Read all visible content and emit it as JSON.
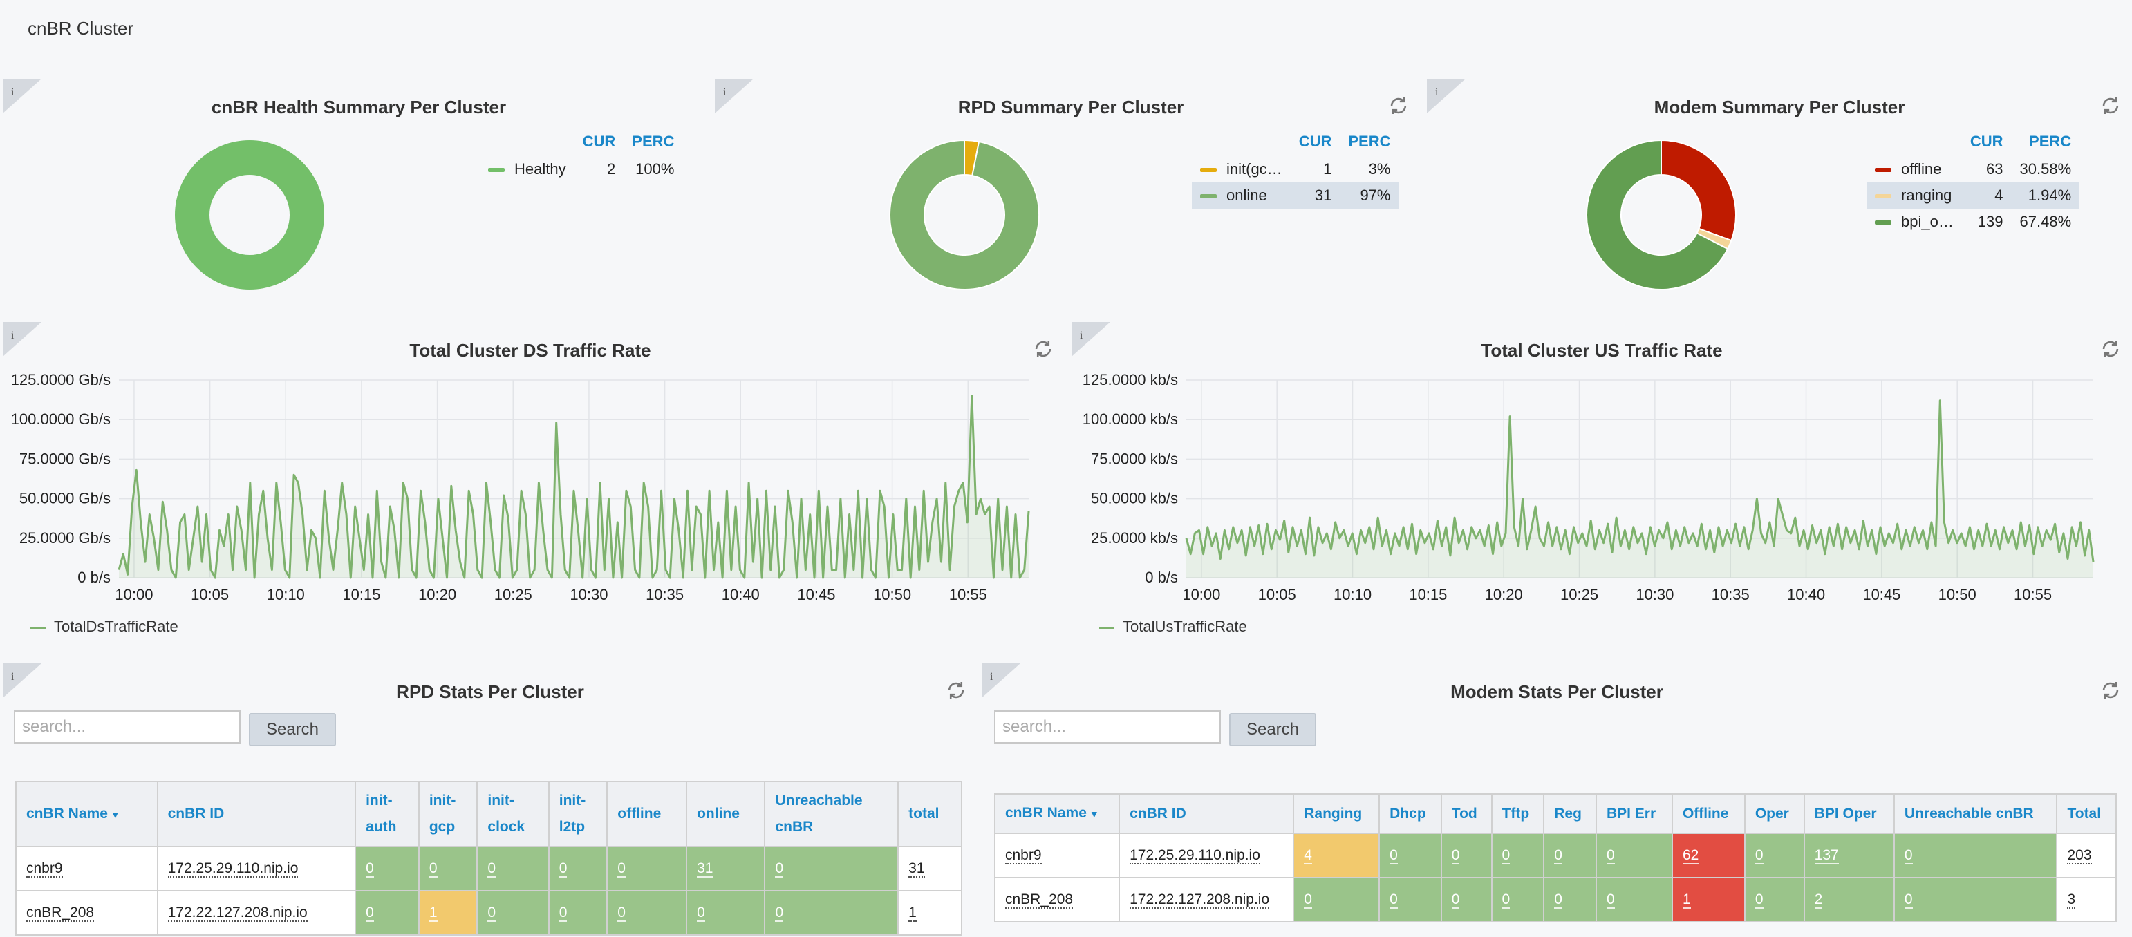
{
  "page": {
    "title": "cnBR Cluster"
  },
  "health": {
    "title": "cnBR Health Summary Per Cluster",
    "cur_header": "CUR",
    "perc_header": "PERC",
    "rows": [
      {
        "label": "Healthy",
        "cur": "2",
        "perc": "100%",
        "color": "#73bf69",
        "value": 2
      }
    ]
  },
  "rpd_summary": {
    "title": "RPD Summary Per Cluster",
    "cur_header": "CUR",
    "perc_header": "PERC",
    "rows": [
      {
        "label": "init(gc…",
        "cur": "1",
        "perc": "3%",
        "color": "#e5ac0e",
        "value": 1
      },
      {
        "label": "online",
        "cur": "31",
        "perc": "97%",
        "color": "#7eb26d",
        "value": 31
      }
    ]
  },
  "modem_summary": {
    "title": "Modem Summary Per Cluster",
    "cur_header": "CUR",
    "perc_header": "PERC",
    "rows": [
      {
        "label": "offline",
        "cur": "63",
        "perc": "30.58%",
        "color": "#bf1b00",
        "value": 63
      },
      {
        "label": "ranging",
        "cur": "4",
        "perc": "1.94%",
        "color": "#f4d598",
        "value": 4
      },
      {
        "label": "bpi_o…",
        "cur": "139",
        "perc": "67.48%",
        "color": "#629e51",
        "value": 139
      }
    ]
  },
  "ds_chart": {
    "title": "Total Cluster DS Traffic Rate",
    "legend": "TotalDsTrafficRate",
    "y_ticks": [
      "0 b/s",
      "25.0000 Gb/s",
      "50.0000 Gb/s",
      "75.0000 Gb/s",
      "100.0000 Gb/s",
      "125.0000 Gb/s"
    ],
    "x_ticks": [
      "10:00",
      "10:05",
      "10:10",
      "10:15",
      "10:20",
      "10:25",
      "10:30",
      "10:35",
      "10:40",
      "10:45",
      "10:50",
      "10:55"
    ]
  },
  "us_chart": {
    "title": "Total Cluster US Traffic Rate",
    "legend": "TotalUsTrafficRate",
    "y_ticks": [
      "0 b/s",
      "25.0000 kb/s",
      "50.0000 kb/s",
      "75.0000 kb/s",
      "100.0000 kb/s",
      "125.0000 kb/s"
    ],
    "x_ticks": [
      "10:00",
      "10:05",
      "10:10",
      "10:15",
      "10:20",
      "10:25",
      "10:30",
      "10:35",
      "10:40",
      "10:45",
      "10:50",
      "10:55"
    ]
  },
  "chart_data": [
    {
      "type": "line",
      "title": "Total Cluster DS Traffic Rate",
      "ylabel": "Gb/s",
      "ylim": [
        0,
        125
      ],
      "x_range": [
        "09:59",
        "10:59"
      ],
      "series": [
        {
          "name": "TotalDsTrafficRate",
          "values": [
            5,
            15,
            2,
            45,
            68,
            35,
            10,
            40,
            25,
            5,
            48,
            30,
            5,
            0,
            35,
            40,
            5,
            25,
            45,
            10,
            40,
            5,
            0,
            30,
            20,
            40,
            5,
            45,
            30,
            5,
            60,
            0,
            40,
            55,
            25,
            5,
            60,
            35,
            5,
            0,
            65,
            60,
            40,
            5,
            30,
            25,
            0,
            55,
            25,
            5,
            30,
            60,
            40,
            0,
            45,
            25,
            5,
            40,
            0,
            55,
            10,
            0,
            45,
            30,
            0,
            60,
            50,
            5,
            0,
            55,
            35,
            5,
            0,
            50,
            25,
            0,
            58,
            30,
            10,
            0,
            55,
            40,
            5,
            0,
            60,
            35,
            5,
            0,
            52,
            38,
            0,
            5,
            55,
            40,
            0,
            5,
            60,
            30,
            5,
            0,
            98,
            40,
            5,
            0,
            55,
            30,
            0,
            50,
            5,
            0,
            60,
            5,
            50,
            0,
            35,
            0,
            55,
            45,
            5,
            0,
            60,
            45,
            0,
            5,
            55,
            5,
            0,
            50,
            30,
            0,
            55,
            5,
            45,
            40,
            0,
            55,
            5,
            35,
            0,
            55,
            5,
            45,
            5,
            0,
            60,
            10,
            50,
            0,
            55,
            5,
            45,
            0,
            5,
            55,
            35,
            0,
            50,
            5,
            40,
            0,
            55,
            0,
            45,
            5,
            5,
            50,
            0,
            40,
            5,
            55,
            0,
            50,
            5,
            0,
            55,
            45,
            0,
            40,
            5,
            5,
            50,
            0,
            45,
            5,
            55,
            10,
            35,
            50,
            10,
            60,
            5,
            45,
            55,
            60,
            35,
            115,
            40,
            50,
            40,
            45,
            0,
            50,
            5,
            45,
            0,
            40,
            0,
            5,
            42
          ]
        }
      ]
    },
    {
      "type": "line",
      "title": "Total Cluster US Traffic Rate",
      "ylabel": "kb/s",
      "ylim": [
        0,
        125
      ],
      "x_range": [
        "09:59",
        "10:59"
      ],
      "series": [
        {
          "name": "TotalUsTrafficRate",
          "values": [
            25,
            15,
            28,
            30,
            15,
            32,
            20,
            28,
            12,
            30,
            18,
            32,
            22,
            30,
            14,
            32,
            20,
            33,
            15,
            34,
            18,
            30,
            24,
            36,
            16,
            32,
            20,
            30,
            15,
            38,
            14,
            32,
            22,
            28,
            18,
            35,
            25,
            30,
            20,
            28,
            15,
            30,
            22,
            32,
            18,
            38,
            20,
            30,
            15,
            28,
            20,
            32,
            18,
            34,
            15,
            30,
            22,
            28,
            18,
            36,
            20,
            32,
            14,
            38,
            22,
            30,
            18,
            32,
            25,
            30,
            20,
            33,
            15,
            35,
            20,
            28,
            102,
            32,
            20,
            50,
            18,
            30,
            45,
            25,
            20,
            35,
            20,
            32,
            18,
            30,
            15,
            32,
            22,
            28,
            20,
            36,
            18,
            30,
            22,
            34,
            16,
            38,
            20,
            30,
            18,
            32,
            22,
            28,
            15,
            32,
            20,
            30,
            25,
            35,
            18,
            30,
            20,
            32,
            22,
            28,
            20,
            34,
            18,
            30,
            16,
            32,
            20,
            30,
            22,
            34,
            20,
            32,
            18,
            30,
            50,
            28,
            22,
            35,
            20,
            50,
            40,
            30,
            28,
            38,
            20,
            30,
            18,
            33,
            22,
            30,
            15,
            32,
            20,
            34,
            18,
            32,
            22,
            30,
            18,
            36,
            20,
            30,
            15,
            32,
            20,
            28,
            22,
            34,
            18,
            30,
            20,
            32,
            22,
            30,
            18,
            35,
            20,
            112,
            35,
            22,
            30,
            22,
            28,
            20,
            32,
            18,
            30,
            20,
            34,
            20,
            30,
            18,
            32,
            22,
            30,
            18,
            35,
            20,
            33,
            15,
            32,
            20,
            30,
            24,
            34,
            16,
            28,
            12,
            32,
            20,
            35,
            14,
            30,
            10
          ]
        }
      ]
    }
  ],
  "rpd_stats": {
    "title": "RPD Stats Per Cluster",
    "search_placeholder": "search...",
    "search_button": "Search",
    "headers": [
      "cnBR Name",
      "cnBR ID",
      "init-\nauth",
      "init-\ngcp",
      "init-\nclock",
      "init-\nl2tp",
      "offline",
      "online",
      "Unreachable\ncnBR",
      "total"
    ],
    "rows": [
      [
        "cnbr9",
        "172.25.29.110.nip.io",
        "0",
        "0",
        "0",
        "0",
        "0",
        "31",
        "0",
        "31"
      ],
      [
        "cnBR_208",
        "172.22.127.208.nip.io",
        "0",
        "1",
        "0",
        "0",
        "0",
        "0",
        "0",
        "1"
      ]
    ]
  },
  "modem_stats": {
    "title": "Modem Stats Per Cluster",
    "search_placeholder": "search...",
    "search_button": "Search",
    "headers": [
      "cnBR Name",
      "cnBR ID",
      "Ranging",
      "Dhcp",
      "Tod",
      "Tftp",
      "Reg",
      "BPI Err",
      "Offline",
      "Oper",
      "BPI Oper",
      "Unreachable cnBR",
      "Total"
    ],
    "rows": [
      [
        "cnbr9",
        "172.25.29.110.nip.io",
        "4",
        "0",
        "0",
        "0",
        "0",
        "0",
        "62",
        "0",
        "137",
        "0",
        "203"
      ],
      [
        "cnBR_208",
        "172.22.127.208.nip.io",
        "0",
        "0",
        "0",
        "0",
        "0",
        "0",
        "1",
        "0",
        "2",
        "0",
        "3"
      ]
    ]
  }
}
